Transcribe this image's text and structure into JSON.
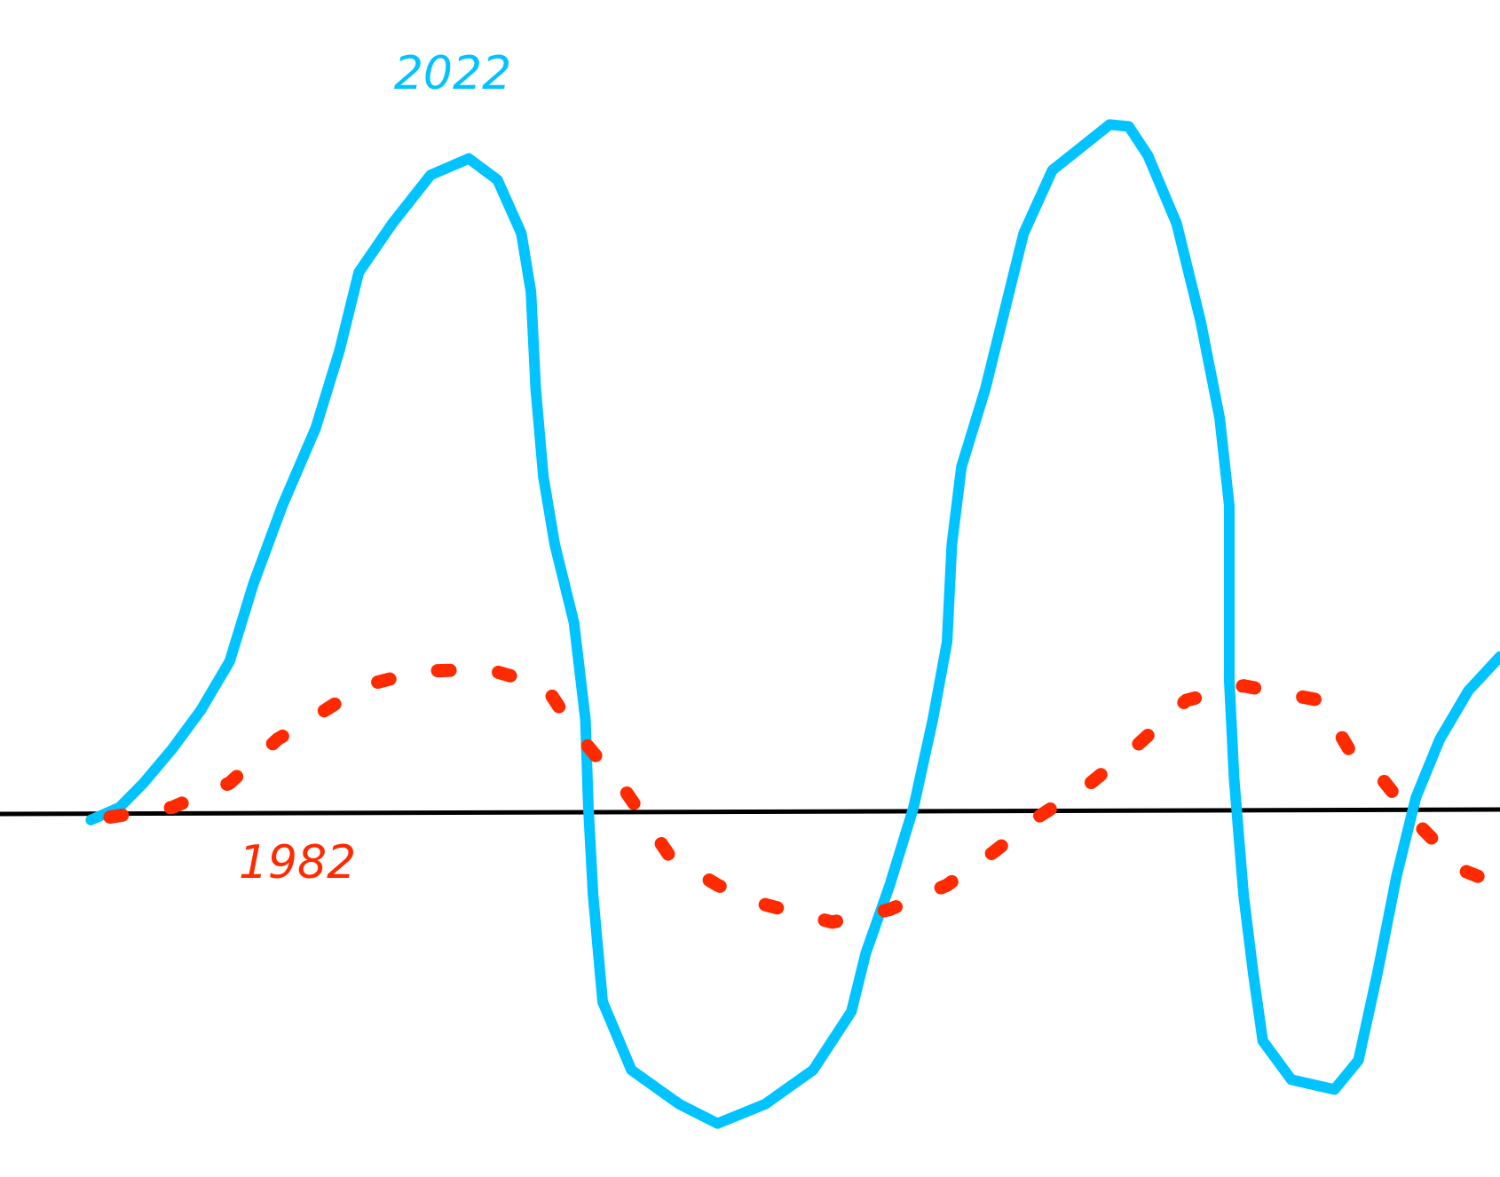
{
  "chart_data": {
    "type": "line",
    "xlim": [
      0,
      1568
    ],
    "ylim": [
      -375,
      835
    ],
    "series": [
      {
        "name": "2022",
        "color": "#00c3ff",
        "style": "solid",
        "x": [
          95,
          125,
          150,
          180,
          210,
          240,
          265,
          295,
          330,
          355,
          375,
          410,
          450,
          490,
          520,
          545,
          555,
          560,
          568,
          580,
          600,
          612,
          615,
          620,
          630,
          660,
          710,
          750,
          800,
          850,
          890,
          905,
          930,
          955,
          975,
          990,
          995,
          1005,
          1030,
          1050,
          1070,
          1100,
          1160,
          1180,
          1200,
          1230,
          1255,
          1275,
          1285,
          1285,
          1290,
          1300,
          1310,
          1320,
          1350,
          1395,
          1420,
          1440,
          1460,
          1480,
          1505,
          1535,
          1568
        ],
        "values": [
          -8,
          5,
          30,
          65,
          105,
          155,
          235,
          315,
          395,
          475,
          555,
          605,
          655,
          672,
          650,
          595,
          535,
          435,
          345,
          275,
          195,
          95,
          5,
          -85,
          -195,
          -265,
          -300,
          -320,
          -300,
          -265,
          -205,
          -145,
          -75,
          5,
          95,
          175,
          275,
          355,
          435,
          515,
          595,
          660,
          707,
          705,
          675,
          605,
          505,
          405,
          315,
          135,
          35,
          -85,
          -165,
          -235,
          -275,
          -285,
          -255,
          -165,
          -65,
          15,
          75,
          125,
          160
        ]
      },
      {
        "name": "1982",
        "color": "#ff2a00",
        "style": "dashed",
        "x": [
          115,
          180,
          240,
          290,
          340,
          380,
          440,
          510,
          570,
          600,
          655,
          700,
          750,
          800,
          870,
          930,
          990,
          1040,
          1085,
          1140,
          1190,
          1240,
          1300,
          1380,
          1410,
          1440,
          1485,
          1530,
          1568
        ],
        "values": [
          -5,
          5,
          30,
          75,
          105,
          130,
          145,
          147,
          130,
          85,
          20,
          -45,
          -75,
          -95,
          -113,
          -100,
          -75,
          -40,
          -5,
          30,
          70,
          115,
          130,
          115,
          65,
          40,
          -15,
          -60,
          -75
        ]
      }
    ]
  }
}
